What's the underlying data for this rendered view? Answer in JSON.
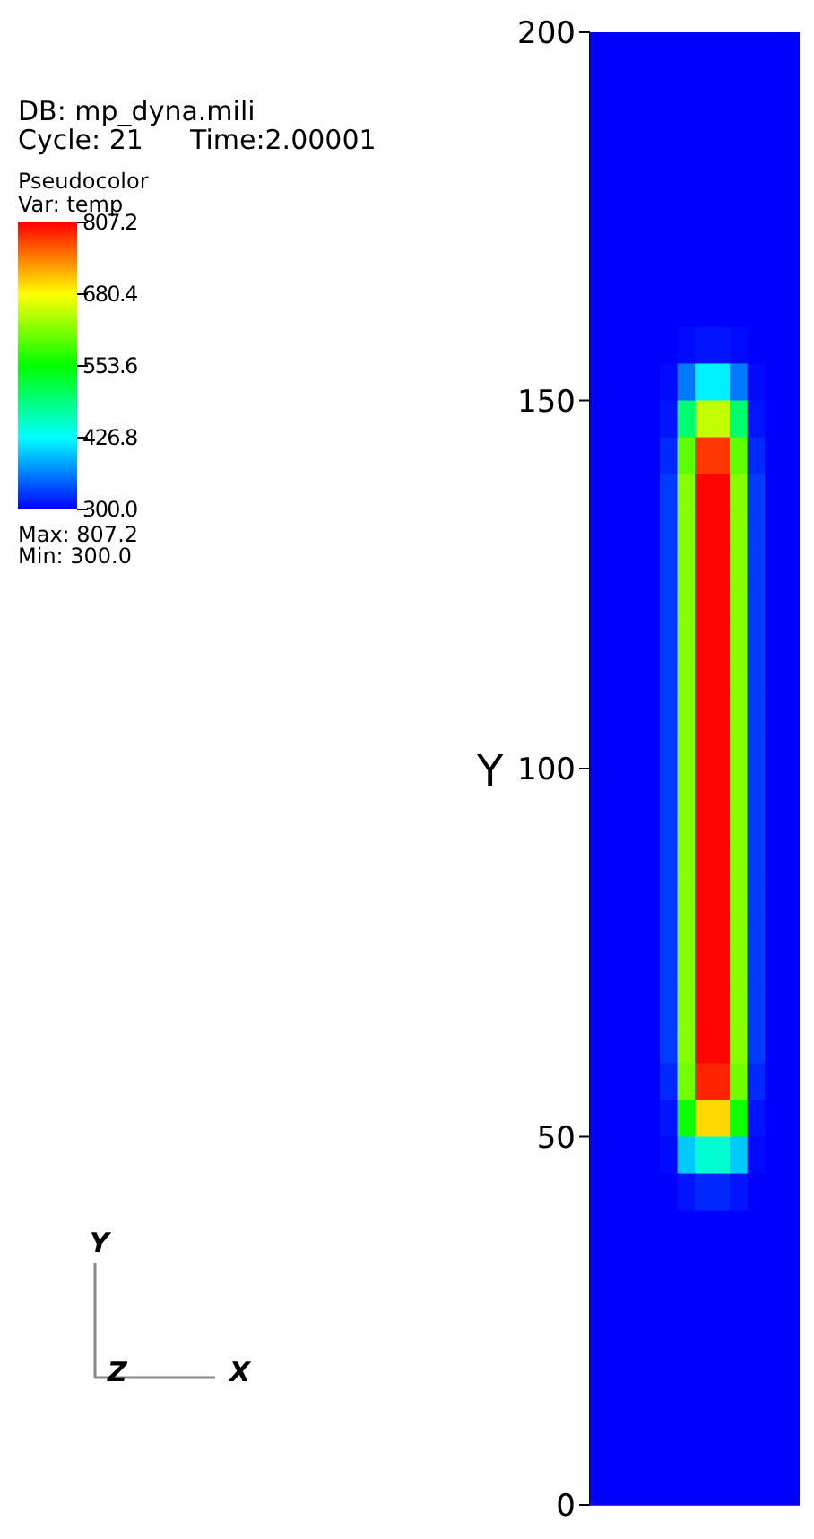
{
  "chart_data": {
    "type": "heatmap",
    "legend_title": "Pseudocolor",
    "clabel": "Var: temp",
    "ylabel": "Y",
    "annotations": [
      "DB: mp_dyna.mili",
      "Cycle: 21",
      "Time:2.00001",
      "Max: 807.2",
      "Min: 300.0",
      "Y",
      "Z",
      "X"
    ],
    "categories": [
      null,
      null,
      null,
      null,
      null,
      null,
      null,
      null,
      null,
      null,
      null,
      null
    ],
    "ylim": [
      0,
      200
    ],
    "yticks": [
      0,
      50,
      100,
      150,
      200
    ],
    "tick_labels": "y",
    "clim": [
      300,
      807.2
    ],
    "cticks": [
      {
        "value": 300,
        "label": "300.0"
      },
      426.8,
      553.6,
      680.4,
      807.2
    ],
    "cells": [
      [
        300,
        300,
        300,
        300,
        300,
        300,
        300,
        300,
        300,
        300,
        300,
        300
      ],
      [
        300,
        300,
        300,
        300,
        300,
        300,
        300,
        300,
        300,
        300,
        300,
        300
      ],
      [
        300,
        300,
        300,
        300,
        300,
        300,
        300,
        300,
        300,
        300,
        300,
        300
      ],
      [
        300,
        300,
        300,
        300,
        300,
        300,
        300,
        300,
        300,
        300,
        300,
        300
      ],
      [
        300,
        300,
        300,
        300,
        300,
        300,
        300,
        300,
        300,
        300,
        300,
        300
      ],
      [
        300,
        300,
        300,
        300,
        300,
        300,
        300,
        300,
        300,
        300,
        300,
        300
      ],
      [
        300,
        300,
        300,
        300,
        300,
        300,
        300,
        300,
        300,
        300,
        300,
        300
      ],
      [
        300,
        300,
        300,
        300,
        300,
        300,
        300,
        300,
        300,
        300,
        300,
        300
      ],
      [
        300,
        300,
        300,
        300,
        300,
        305,
        310,
        310,
        305,
        300,
        300,
        300
      ],
      [
        300,
        300,
        300,
        300,
        305,
        360,
        420,
        420,
        360,
        305,
        300,
        300
      ],
      [
        300,
        300,
        300,
        300,
        310,
        500,
        650,
        650,
        500,
        310,
        300,
        300
      ],
      [
        300,
        300,
        300,
        300,
        320,
        600,
        780,
        780,
        600,
        320,
        300,
        300
      ],
      [
        300,
        300,
        300,
        300,
        330,
        620,
        805,
        805,
        620,
        330,
        300,
        300
      ],
      [
        300,
        300,
        300,
        300,
        330,
        620,
        805,
        805,
        620,
        330,
        300,
        300
      ],
      [
        300,
        300,
        300,
        300,
        330,
        620,
        805,
        805,
        620,
        330,
        300,
        300
      ],
      [
        300,
        300,
        300,
        300,
        330,
        620,
        805,
        805,
        620,
        330,
        300,
        300
      ],
      [
        300,
        300,
        300,
        300,
        330,
        620,
        805,
        805,
        620,
        330,
        300,
        300
      ],
      [
        300,
        300,
        300,
        300,
        330,
        620,
        805,
        805,
        620,
        330,
        300,
        300
      ],
      [
        300,
        300,
        300,
        300,
        330,
        620,
        805,
        805,
        620,
        330,
        300,
        300
      ],
      [
        300,
        300,
        300,
        300,
        330,
        620,
        805,
        805,
        620,
        330,
        300,
        300
      ],
      [
        300,
        300,
        300,
        300,
        330,
        620,
        805,
        805,
        620,
        330,
        300,
        300
      ],
      [
        300,
        300,
        300,
        300,
        330,
        620,
        805,
        805,
        620,
        330,
        300,
        300
      ],
      [
        300,
        300,
        300,
        300,
        330,
        620,
        805,
        805,
        620,
        330,
        300,
        300
      ],
      [
        300,
        300,
        300,
        300,
        330,
        620,
        805,
        805,
        620,
        330,
        300,
        300
      ],
      [
        300,
        300,
        300,
        300,
        330,
        620,
        805,
        805,
        620,
        330,
        300,
        300
      ],
      [
        300,
        300,
        300,
        300,
        330,
        620,
        805,
        805,
        620,
        330,
        300,
        300
      ],
      [
        300,
        300,
        300,
        300,
        330,
        620,
        805,
        805,
        620,
        330,
        300,
        300
      ],
      [
        300,
        300,
        300,
        300,
        330,
        620,
        805,
        805,
        620,
        330,
        300,
        300
      ],
      [
        300,
        300,
        300,
        300,
        320,
        610,
        790,
        790,
        610,
        320,
        300,
        300
      ],
      [
        300,
        300,
        300,
        300,
        310,
        560,
        700,
        700,
        560,
        310,
        300,
        300
      ],
      [
        300,
        300,
        300,
        300,
        305,
        400,
        450,
        450,
        400,
        305,
        300,
        300
      ],
      [
        300,
        300,
        300,
        300,
        300,
        310,
        320,
        320,
        310,
        300,
        300,
        300
      ],
      [
        300,
        300,
        300,
        300,
        300,
        300,
        300,
        300,
        300,
        300,
        300,
        300
      ],
      [
        300,
        300,
        300,
        300,
        300,
        300,
        300,
        300,
        300,
        300,
        300,
        300
      ],
      [
        300,
        300,
        300,
        300,
        300,
        300,
        300,
        300,
        300,
        300,
        300,
        300
      ],
      [
        300,
        300,
        300,
        300,
        300,
        300,
        300,
        300,
        300,
        300,
        300,
        300
      ],
      [
        300,
        300,
        300,
        300,
        300,
        300,
        300,
        300,
        300,
        300,
        300,
        300
      ],
      [
        300,
        300,
        300,
        300,
        300,
        300,
        300,
        300,
        300,
        300,
        300,
        300
      ],
      [
        300,
        300,
        300,
        300,
        300,
        300,
        300,
        300,
        300,
        300,
        300,
        300
      ],
      [
        300,
        300,
        300,
        300,
        300,
        300,
        300,
        300,
        300,
        300,
        300,
        300
      ]
    ]
  }
}
